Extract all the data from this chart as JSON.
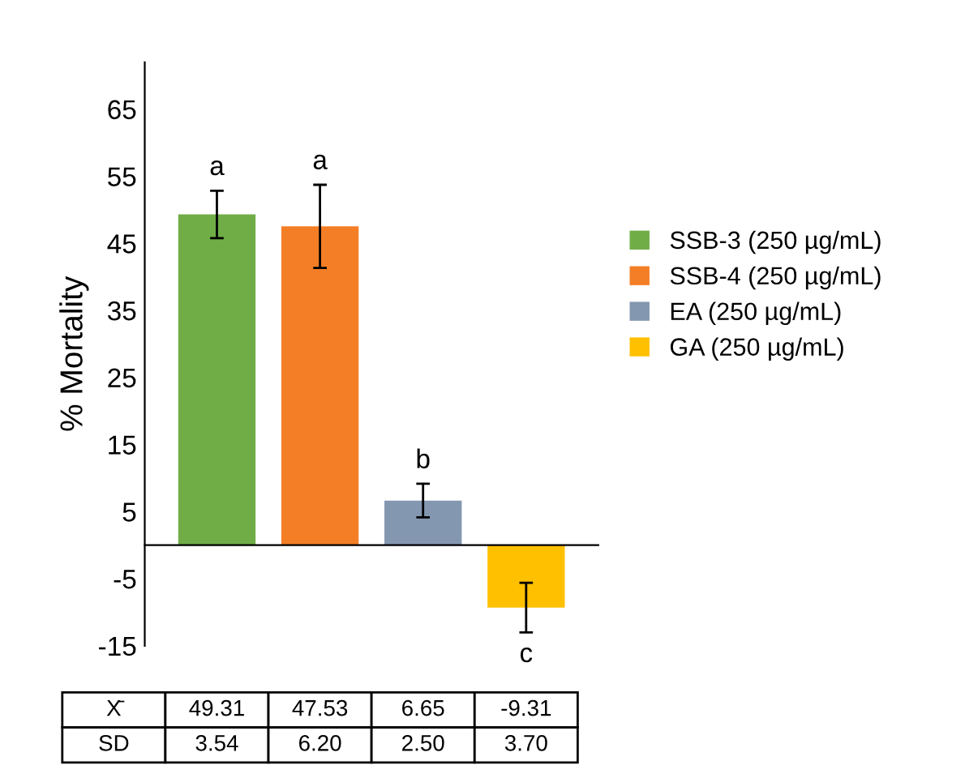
{
  "chart_data": {
    "type": "bar",
    "ylabel": "% Mortality",
    "categories": [
      null
    ],
    "series": [
      {
        "name": "SSB-3 (250 µg/mL)",
        "color": "#70ad47",
        "values": [
          49.31
        ],
        "errors": [
          3.54
        ]
      },
      {
        "name": "SSB-4 (250 µg/mL)",
        "color": "#f47e26",
        "values": [
          47.53
        ],
        "errors": [
          6.2
        ]
      },
      {
        "name": "EA (250 µg/mL)",
        "color": "#8497b0",
        "values": [
          6.65
        ],
        "errors": [
          2.5
        ]
      },
      {
        "name": "GA (250 µg/mL)",
        "color": "#ffc000",
        "values": [
          -9.31
        ],
        "errors": [
          3.7
        ]
      }
    ],
    "ylim": [
      -15,
      72
    ],
    "yticks": [
      -15,
      -5,
      5,
      15,
      25,
      35,
      45,
      55,
      65
    ],
    "legend": "right",
    "grid": false,
    "annotations": [
      "a",
      "a",
      "b",
      "c",
      "X̄",
      "49.31",
      "47.53",
      "6.65",
      "-9.31",
      "SD",
      "3.54",
      "6.20",
      "2.50",
      "3.70"
    ]
  }
}
